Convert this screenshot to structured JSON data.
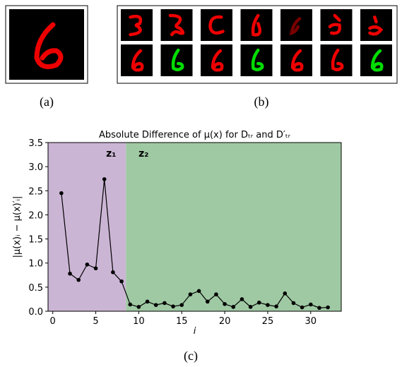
{
  "captions": [
    "(a)",
    "(b)",
    "(c)"
  ],
  "chart_data": {
    "type": "line",
    "title": "Absolute Difference of μ(x) for Dₜᵣ and D′ₜᵣ",
    "xlabel": "i",
    "ylabel": "|μ(x)ᵢ − μ(x)′ᵢ|",
    "x": [
      1,
      2,
      3,
      4,
      5,
      6,
      7,
      8,
      9,
      10,
      11,
      12,
      13,
      14,
      15,
      16,
      17,
      18,
      19,
      20,
      21,
      22,
      23,
      24,
      25,
      26,
      27,
      28,
      29,
      30,
      31,
      32
    ],
    "series": [
      {
        "color": "#000000",
        "values": [
          2.45,
          0.78,
          0.65,
          0.97,
          0.89,
          2.74,
          0.81,
          0.62,
          0.14,
          0.09,
          0.2,
          0.13,
          0.17,
          0.1,
          0.13,
          0.35,
          0.42,
          0.2,
          0.35,
          0.15,
          0.09,
          0.25,
          0.09,
          0.18,
          0.13,
          0.1,
          0.37,
          0.17,
          0.08,
          0.14,
          0.07,
          0.08
        ]
      }
    ],
    "xlim": [
      -0.55,
      33.55
    ],
    "ylim": [
      0,
      3.5
    ],
    "xticks": [
      0,
      5,
      10,
      15,
      20,
      25,
      30
    ],
    "yticks": [
      {
        "value": 0,
        "label": "0.0"
      },
      0.5,
      {
        "value": 1,
        "label": "1.0"
      },
      1.5,
      {
        "value": 2,
        "label": "2.0"
      },
      2.5,
      {
        "value": 3,
        "label": "3.0"
      },
      3.5
    ],
    "regions": [
      {
        "name": "z₁",
        "from": -0.55,
        "to": 8.5,
        "color": "#cbb5d5"
      },
      {
        "name": "z₂",
        "from": 8.5,
        "to": 33.55,
        "color": "#9fc9a3"
      }
    ]
  }
}
